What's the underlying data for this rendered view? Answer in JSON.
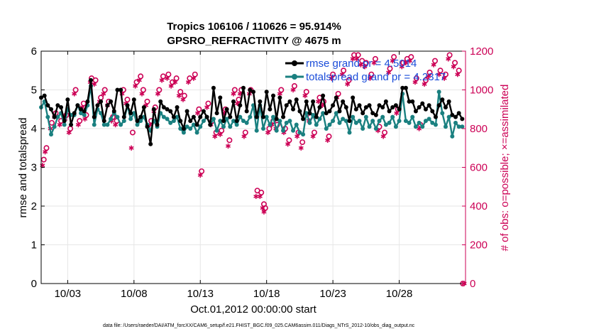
{
  "chart_data": {
    "type": "line",
    "title": "Tropics 106106 / 110626 = 95.914%",
    "subtitle": "GPSRO_REFRACTIVITY @ 4675 m",
    "xlabel": "Oct.01,2012 00:00:00 start",
    "ylabel": "rmse and totalspread",
    "ylabel_right": "# of obs: o=possible; ×=assimilated",
    "footnote": "data file: /Users/raeder/DAI/ATM_forcXX/CAM6_setup/f.e21.FHIST_BGC.f09_025.CAM6assim.011/Diags_NTrS_2012-10/obs_diag_output.nc",
    "xlim": [
      1,
      33
    ],
    "ylim": [
      0,
      6
    ],
    "ylim_right": [
      0,
      1200
    ],
    "x_ticks": [
      3,
      8,
      13,
      18,
      23,
      28
    ],
    "x_tick_labels": [
      "10/03",
      "10/08",
      "10/13",
      "10/18",
      "10/23",
      "10/28"
    ],
    "y_ticks": [
      0,
      1,
      2,
      3,
      4,
      5,
      6
    ],
    "y_tick_labels": [
      "0",
      "1",
      "2",
      "3",
      "4",
      "5",
      "6"
    ],
    "y_right_ticks": [
      0,
      200,
      400,
      600,
      800,
      1000,
      1200
    ],
    "y_right_tick_labels": [
      "0",
      "200",
      "400",
      "600",
      "800",
      "1000",
      "1200"
    ],
    "legend": [
      "rmse grand pr = 4.5014",
      "totalspread grand pr = 4.2317"
    ],
    "colors": {
      "rmse": "#000000",
      "spread": "#1a8080",
      "obs": "#cc0055"
    },
    "x": [
      1.0,
      1.25,
      1.5,
      1.75,
      2.0,
      2.25,
      2.5,
      2.75,
      3.0,
      3.25,
      3.5,
      3.75,
      4.0,
      4.25,
      4.5,
      4.75,
      5.0,
      5.25,
      5.5,
      5.75,
      6.0,
      6.25,
      6.5,
      6.75,
      7.0,
      7.25,
      7.5,
      7.75,
      8.0,
      8.25,
      8.5,
      8.75,
      9.0,
      9.25,
      9.5,
      9.75,
      10.0,
      10.25,
      10.5,
      10.75,
      11.0,
      11.25,
      11.5,
      11.75,
      12.0,
      12.25,
      12.5,
      12.75,
      13.0,
      13.25,
      13.5,
      13.75,
      14.0,
      14.25,
      14.5,
      14.75,
      15.0,
      15.25,
      15.5,
      15.75,
      16.0,
      16.25,
      16.5,
      16.75,
      17.0,
      17.25,
      17.5,
      17.75,
      18.0,
      18.25,
      18.5,
      18.75,
      19.0,
      19.25,
      19.5,
      19.75,
      20.0,
      20.25,
      20.5,
      20.75,
      21.0,
      21.25,
      21.5,
      21.75,
      22.0,
      22.25,
      22.5,
      22.75,
      23.0,
      23.25,
      23.5,
      23.75,
      24.0,
      24.25,
      24.5,
      24.75,
      25.0,
      25.25,
      25.5,
      25.75,
      26.0,
      26.25,
      26.5,
      26.75,
      27.0,
      27.25,
      27.5,
      27.75,
      28.0,
      28.25,
      28.5,
      28.75,
      29.0,
      29.25,
      29.5,
      29.75,
      30.0,
      30.25,
      30.5,
      30.75,
      31.0,
      31.25,
      31.5,
      31.75,
      32.0,
      32.25,
      32.5,
      32.75
    ],
    "series": [
      {
        "name": "rmse",
        "values": [
          4.8,
          4.85,
          4.6,
          4.5,
          4.3,
          4.6,
          4.55,
          4.2,
          4.75,
          4.1,
          4.4,
          4.6,
          4.5,
          4.45,
          4.7,
          5.25,
          4.3,
          4.6,
          4.7,
          4.2,
          4.6,
          4.7,
          4.45,
          5.0,
          5.0,
          4.3,
          4.6,
          4.4,
          4.75,
          4.2,
          4.3,
          4.55,
          4.05,
          3.6,
          4.5,
          4.1,
          4.7,
          4.55,
          4.5,
          4.45,
          4.3,
          4.55,
          4.2,
          4.0,
          4.45,
          4.2,
          4.3,
          4.1,
          4.3,
          4.45,
          4.3,
          4.1,
          5.05,
          4.4,
          4.8,
          4.2,
          4.5,
          4.3,
          4.7,
          4.2,
          4.6,
          5.05,
          4.45,
          5.0,
          4.95,
          4.3,
          4.7,
          4.3,
          4.95,
          4.5,
          4.85,
          4.25,
          4.8,
          4.3,
          4.6,
          4.7,
          4.5,
          4.75,
          4.45,
          4.25,
          4.7,
          4.4,
          4.7,
          4.3,
          4.55,
          4.85,
          4.4,
          4.45,
          4.6,
          4.8,
          4.45,
          4.7,
          4.55,
          4.2,
          4.8,
          4.5,
          4.6,
          4.4,
          4.55,
          4.6,
          4.4,
          4.35,
          4.6,
          4.55,
          4.7,
          4.45,
          4.55,
          4.6,
          4.5,
          5.05,
          5.05,
          4.7,
          4.7,
          4.45,
          4.55,
          4.65,
          4.5,
          4.6,
          4.45,
          4.3,
          4.6,
          4.75,
          4.55,
          4.7,
          4.35,
          4.3,
          4.4,
          4.25
        ]
      },
      {
        "name": "totalspread",
        "values": [
          4.55,
          4.7,
          4.3,
          3.85,
          4.05,
          4.3,
          4.4,
          4.1,
          4.5,
          4.35,
          4.35,
          4.6,
          4.4,
          4.35,
          4.6,
          5.1,
          4.1,
          4.5,
          4.4,
          4.1,
          4.1,
          4.25,
          4.4,
          4.3,
          4.1,
          4.2,
          4.6,
          4.25,
          4.4,
          4.1,
          4.2,
          4.3,
          4.1,
          3.95,
          4.2,
          4.05,
          4.4,
          4.3,
          4.25,
          4.15,
          4.2,
          4.3,
          4.0,
          3.9,
          4.05,
          4.0,
          4.1,
          3.9,
          4.05,
          4.2,
          4.3,
          4.1,
          4.25,
          3.95,
          4.2,
          4.05,
          4.25,
          4.05,
          4.2,
          4.1,
          4.3,
          4.2,
          4.15,
          4.3,
          4.6,
          3.95,
          4.6,
          4.0,
          4.3,
          4.1,
          4.3,
          3.95,
          4.2,
          3.95,
          4.15,
          4.2,
          3.95,
          4.1,
          3.9,
          3.85,
          4.4,
          4.15,
          4.35,
          4.1,
          4.25,
          4.4,
          4.0,
          4.1,
          4.2,
          4.4,
          4.15,
          4.25,
          4.2,
          3.9,
          4.3,
          4.15,
          4.2,
          4.0,
          4.3,
          4.05,
          4.2,
          4.0,
          4.2,
          4.3,
          4.1,
          4.15,
          4.3,
          4.05,
          4.2,
          4.9,
          4.2,
          4.15,
          4.3,
          4.05,
          4.15,
          4.05,
          4.2,
          4.25,
          4.15,
          4.1,
          4.95,
          4.4,
          4.05,
          4.3,
          3.8,
          4.15,
          4.05,
          4.05
        ]
      }
    ],
    "obs_possible": [
      [
        1.2,
        640
      ],
      [
        1.4,
        700
      ],
      [
        1.8,
        830
      ],
      [
        2.1,
        880
      ],
      [
        2.5,
        840
      ],
      [
        2.9,
        870
      ],
      [
        3.2,
        800
      ],
      [
        3.6,
        1000
      ],
      [
        3.9,
        840
      ],
      [
        4.2,
        930
      ],
      [
        4.4,
        870
      ],
      [
        4.8,
        1060
      ],
      [
        5.1,
        1050
      ],
      [
        5.5,
        960
      ],
      [
        5.8,
        1000
      ],
      [
        6.1,
        940
      ],
      [
        6.4,
        860
      ],
      [
        6.7,
        840
      ],
      [
        7.2,
        1000
      ],
      [
        7.5,
        950
      ],
      [
        7.9,
        780
      ],
      [
        8.2,
        1040
      ],
      [
        8.5,
        1070
      ],
      [
        8.7,
        1000
      ],
      [
        9.0,
        940
      ],
      [
        9.3,
        840
      ],
      [
        9.6,
        910
      ],
      [
        9.9,
        1000
      ],
      [
        10.2,
        1070
      ],
      [
        10.6,
        1080
      ],
      [
        10.9,
        1040
      ],
      [
        11.2,
        1060
      ],
      [
        11.5,
        990
      ],
      [
        11.8,
        970
      ],
      [
        12.2,
        1060
      ],
      [
        12.6,
        1080
      ],
      [
        12.9,
        900
      ],
      [
        13.1,
        580
      ],
      [
        13.6,
        930
      ],
      [
        13.9,
        840
      ],
      [
        14.2,
        780
      ],
      [
        14.6,
        790
      ],
      [
        14.9,
        900
      ],
      [
        15.2,
        740
      ],
      [
        15.6,
        1000
      ],
      [
        15.9,
        950
      ],
      [
        16.1,
        1000
      ],
      [
        16.4,
        780
      ],
      [
        16.8,
        1000
      ],
      [
        17.3,
        480
      ],
      [
        17.6,
        470
      ],
      [
        17.8,
        410
      ],
      [
        17.9,
        390
      ],
      [
        18.2,
        800
      ],
      [
        18.5,
        840
      ],
      [
        18.8,
        820
      ],
      [
        19.1,
        1000
      ],
      [
        19.4,
        800
      ],
      [
        19.7,
        740
      ],
      [
        20.1,
        1020
      ],
      [
        20.4,
        780
      ],
      [
        20.7,
        730
      ],
      [
        21.0,
        990
      ],
      [
        21.3,
        860
      ],
      [
        21.6,
        780
      ],
      [
        22.0,
        960
      ],
      [
        22.3,
        940
      ],
      [
        22.7,
        760
      ],
      [
        23.0,
        1080
      ],
      [
        23.4,
        980
      ],
      [
        23.8,
        1100
      ],
      [
        24.2,
        1050
      ],
      [
        24.6,
        1180
      ],
      [
        24.9,
        1180
      ],
      [
        25.2,
        1150
      ],
      [
        25.5,
        1140
      ],
      [
        25.9,
        1080
      ],
      [
        26.2,
        1160
      ],
      [
        26.5,
        810
      ],
      [
        26.9,
        780
      ],
      [
        27.3,
        1110
      ],
      [
        27.6,
        1170
      ],
      [
        27.9,
        900
      ],
      [
        28.3,
        1140
      ],
      [
        28.6,
        1160
      ],
      [
        28.9,
        1170
      ],
      [
        29.3,
        1060
      ],
      [
        29.6,
        820
      ],
      [
        30.0,
        1050
      ],
      [
        30.3,
        1090
      ],
      [
        30.7,
        1150
      ],
      [
        31.1,
        1100
      ],
      [
        31.5,
        1080
      ],
      [
        31.8,
        1180
      ],
      [
        32.2,
        1140
      ],
      [
        32.5,
        1100
      ],
      [
        32.8,
        0
      ]
    ],
    "obs_assimilated": [
      [
        1.1,
        610
      ],
      [
        1.3,
        680
      ],
      [
        1.7,
        800
      ],
      [
        2.0,
        860
      ],
      [
        2.4,
        820
      ],
      [
        2.8,
        850
      ],
      [
        3.1,
        780
      ],
      [
        3.5,
        980
      ],
      [
        3.8,
        820
      ],
      [
        4.1,
        910
      ],
      [
        4.3,
        850
      ],
      [
        4.7,
        1040
      ],
      [
        5.0,
        1030
      ],
      [
        5.4,
        940
      ],
      [
        5.7,
        980
      ],
      [
        6.0,
        920
      ],
      [
        6.3,
        840
      ],
      [
        6.6,
        820
      ],
      [
        7.1,
        980
      ],
      [
        7.4,
        930
      ],
      [
        7.8,
        700
      ],
      [
        8.1,
        1020
      ],
      [
        8.4,
        1050
      ],
      [
        8.6,
        980
      ],
      [
        8.9,
        920
      ],
      [
        9.2,
        820
      ],
      [
        9.5,
        890
      ],
      [
        9.8,
        980
      ],
      [
        10.1,
        1050
      ],
      [
        10.5,
        1060
      ],
      [
        10.8,
        1020
      ],
      [
        11.1,
        1040
      ],
      [
        11.4,
        970
      ],
      [
        11.7,
        950
      ],
      [
        12.1,
        1040
      ],
      [
        12.5,
        1060
      ],
      [
        12.8,
        880
      ],
      [
        13.0,
        560
      ],
      [
        13.5,
        910
      ],
      [
        13.8,
        820
      ],
      [
        14.1,
        760
      ],
      [
        14.5,
        770
      ],
      [
        14.8,
        880
      ],
      [
        15.1,
        710
      ],
      [
        15.5,
        980
      ],
      [
        15.8,
        930
      ],
      [
        16.0,
        980
      ],
      [
        16.3,
        760
      ],
      [
        16.7,
        980
      ],
      [
        17.2,
        450
      ],
      [
        17.5,
        450
      ],
      [
        17.7,
        390
      ],
      [
        17.8,
        370
      ],
      [
        18.1,
        780
      ],
      [
        18.4,
        820
      ],
      [
        18.7,
        800
      ],
      [
        19.0,
        980
      ],
      [
        19.3,
        780
      ],
      [
        19.6,
        720
      ],
      [
        20.0,
        1000
      ],
      [
        20.3,
        760
      ],
      [
        20.6,
        700
      ],
      [
        20.9,
        970
      ],
      [
        21.2,
        840
      ],
      [
        21.5,
        760
      ],
      [
        21.9,
        940
      ],
      [
        22.2,
        920
      ],
      [
        22.6,
        740
      ],
      [
        22.9,
        1060
      ],
      [
        23.3,
        960
      ],
      [
        23.7,
        1080
      ],
      [
        24.1,
        1030
      ],
      [
        24.5,
        1160
      ],
      [
        24.8,
        1160
      ],
      [
        25.1,
        1130
      ],
      [
        25.4,
        1120
      ],
      [
        25.8,
        1060
      ],
      [
        26.1,
        1140
      ],
      [
        26.4,
        790
      ],
      [
        26.8,
        760
      ],
      [
        27.2,
        1090
      ],
      [
        27.5,
        1150
      ],
      [
        27.8,
        880
      ],
      [
        28.2,
        1120
      ],
      [
        28.5,
        1140
      ],
      [
        28.8,
        1150
      ],
      [
        29.2,
        1040
      ],
      [
        29.5,
        800
      ],
      [
        29.9,
        1030
      ],
      [
        30.2,
        1070
      ],
      [
        30.6,
        1130
      ],
      [
        31.0,
        1080
      ],
      [
        31.4,
        1060
      ],
      [
        31.7,
        1160
      ],
      [
        32.1,
        1120
      ],
      [
        32.4,
        1080
      ],
      [
        32.9,
        0
      ]
    ]
  }
}
